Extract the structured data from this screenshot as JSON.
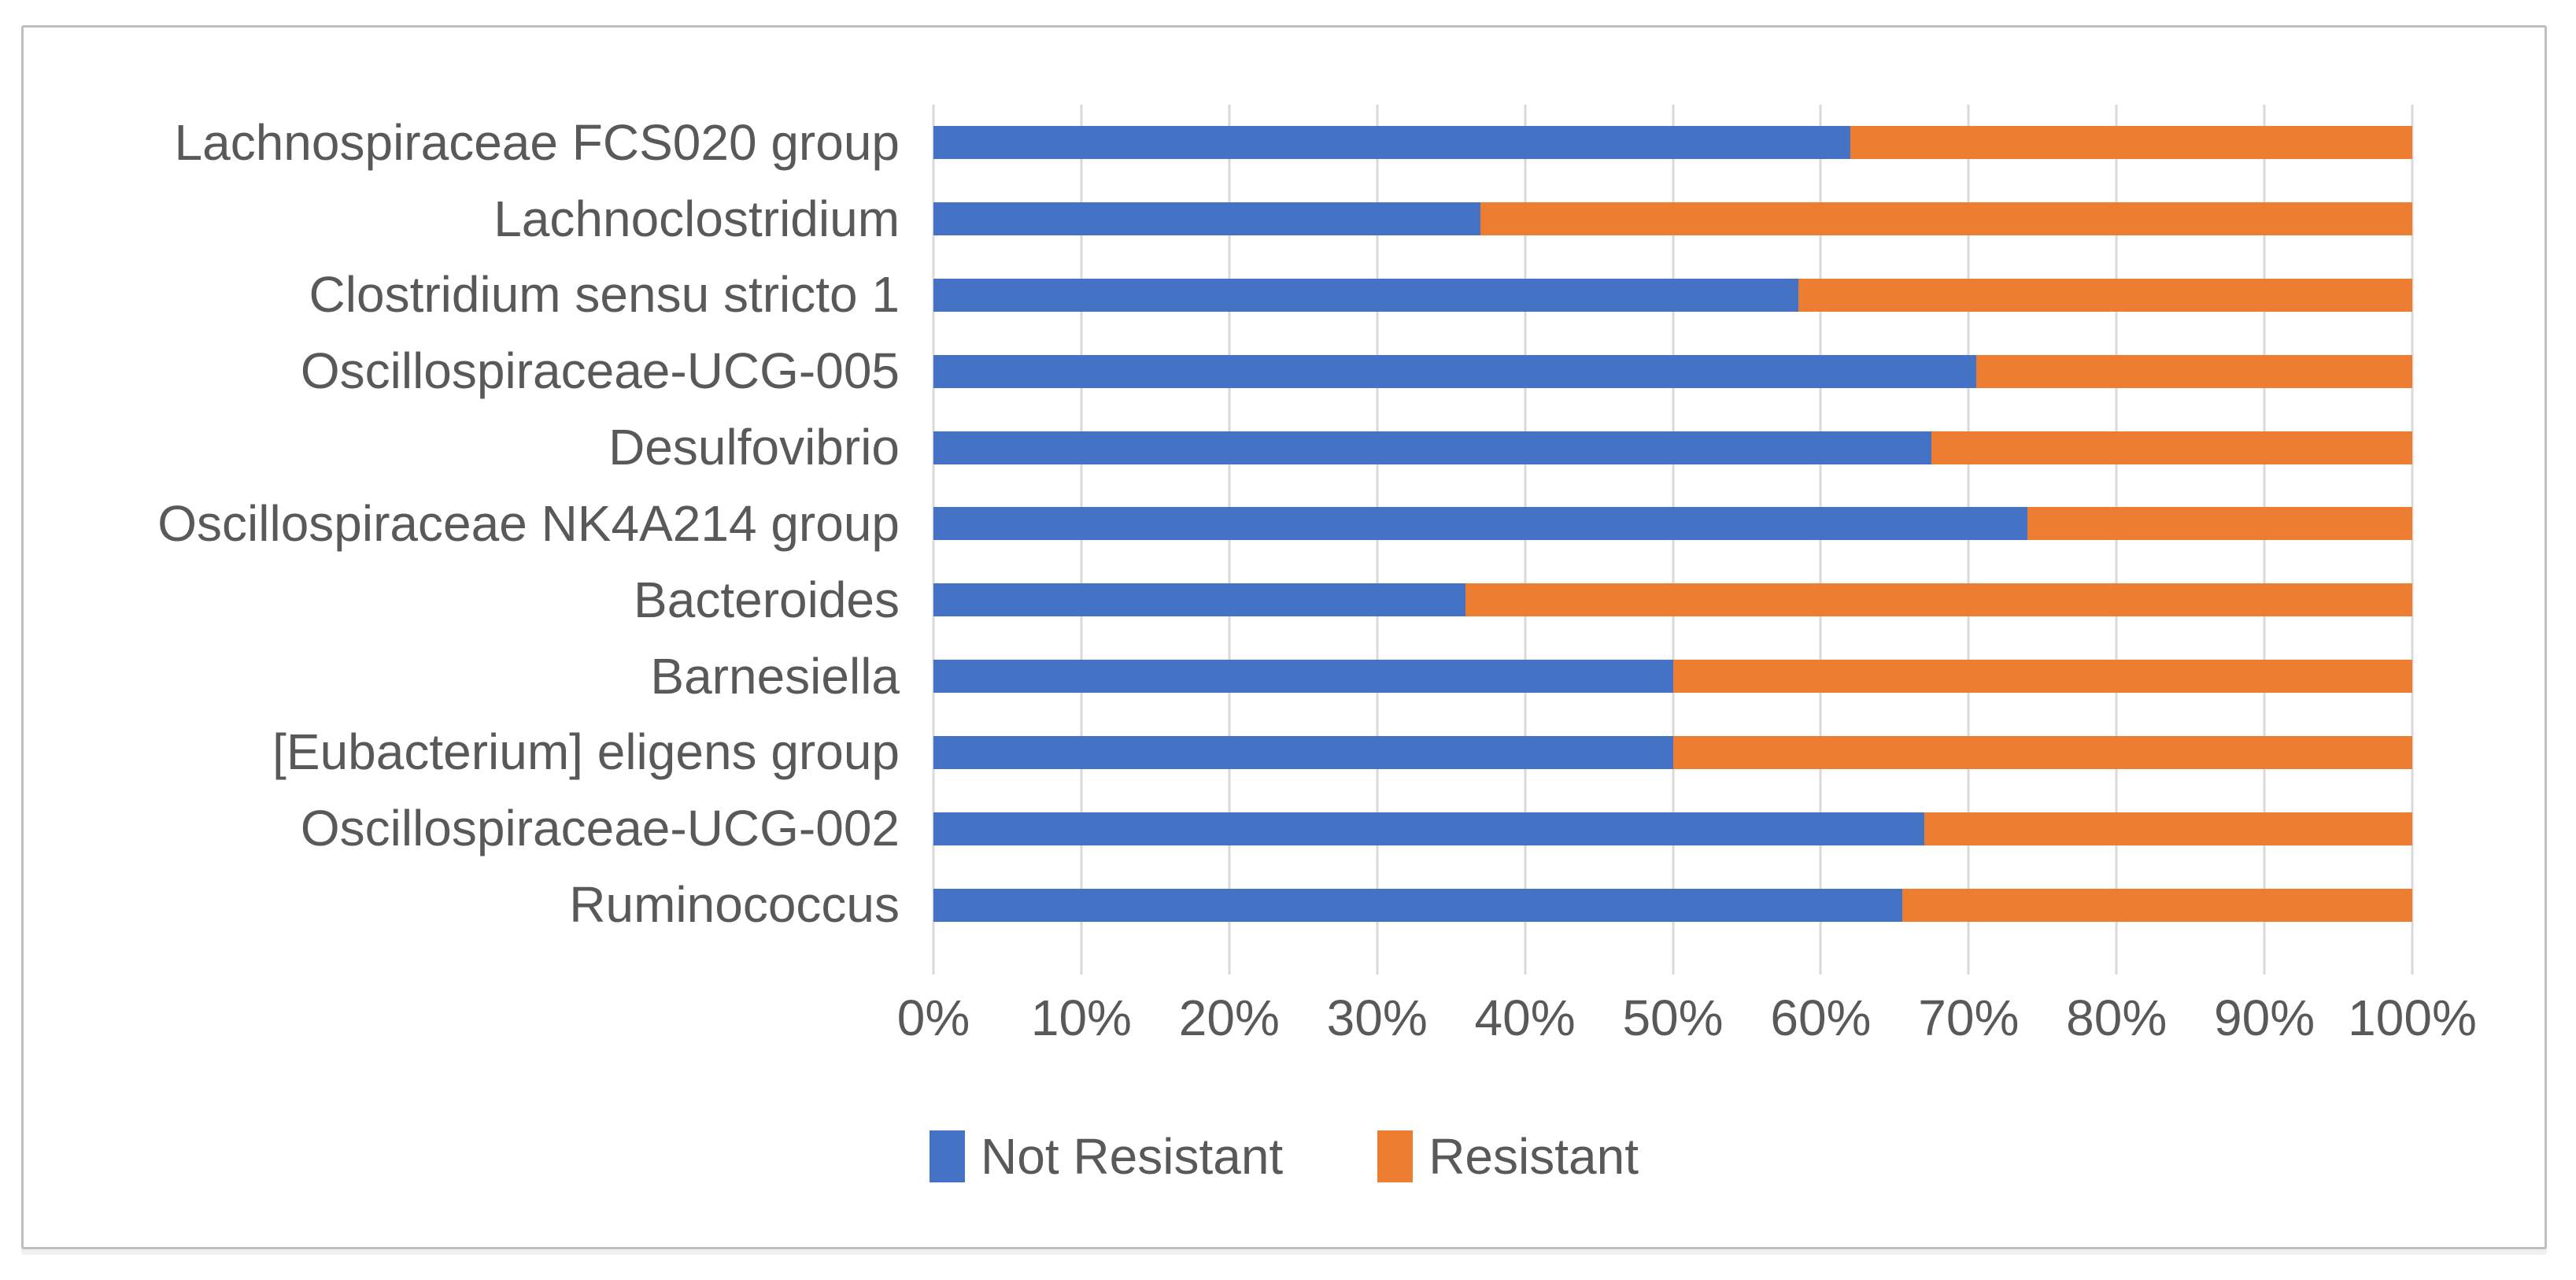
{
  "chart_data": {
    "type": "bar",
    "orientation": "horizontal",
    "stacked": true,
    "title": "",
    "xlabel": "",
    "ylabel": "",
    "xlim": [
      0,
      100
    ],
    "grid": "vertical",
    "legend_position": "bottom",
    "x_ticks": [
      "0%",
      "10%",
      "20%",
      "30%",
      "40%",
      "50%",
      "60%",
      "70%",
      "80%",
      "90%",
      "100%"
    ],
    "categories": [
      "Lachnospiraceae FCS020 group",
      "Lachnoclostridium",
      "Clostridium sensu stricto 1",
      "Oscillospiraceae-UCG-005",
      "Desulfovibrio",
      "Oscillospiraceae NK4A214 group",
      "Bacteroides",
      "Barnesiella",
      "[Eubacterium] eligens group",
      "Oscillospiraceae-UCG-002",
      "Ruminococcus"
    ],
    "series": [
      {
        "name": "Not Resistant",
        "color": "#4472C4",
        "values": [
          62,
          37,
          58.5,
          70.5,
          67.5,
          74,
          36,
          50,
          50,
          67,
          65.5
        ]
      },
      {
        "name": "Resistant",
        "color": "#ED7D31",
        "values": [
          38,
          63,
          41.5,
          29.5,
          32.5,
          26,
          64,
          50,
          50,
          33,
          34.5
        ]
      }
    ]
  },
  "colors": {
    "grid": "#D9D9D9",
    "axis_text": "#595959",
    "figure_border": "#BFBFBF",
    "background": "#FFFFFF"
  }
}
